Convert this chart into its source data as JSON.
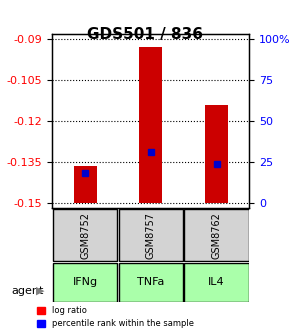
{
  "title": "GDS501 / 836",
  "samples": [
    "GSM8752",
    "GSM8757",
    "GSM8762"
  ],
  "agents": [
    "IFNg",
    "TNFa",
    "IL4"
  ],
  "log_ratios": [
    -0.1365,
    -0.093,
    -0.114
  ],
  "percentile_ranks": [
    18,
    31,
    24
  ],
  "ylim_log": [
    -0.152,
    -0.088
  ],
  "yticks_log": [
    -0.09,
    -0.105,
    -0.12,
    -0.135,
    -0.15
  ],
  "yticks_pct": [
    0,
    25,
    50,
    75,
    100
  ],
  "bar_color": "#cc0000",
  "pct_color": "#0000cc",
  "agent_colors": [
    "#ccffcc",
    "#99ff99",
    "#66ff66"
  ],
  "sample_bg": "#d3d3d3",
  "agent_bg_color": "#aaffaa",
  "grid_color": "#000000",
  "baseline": -0.15,
  "bar_width": 0.35
}
